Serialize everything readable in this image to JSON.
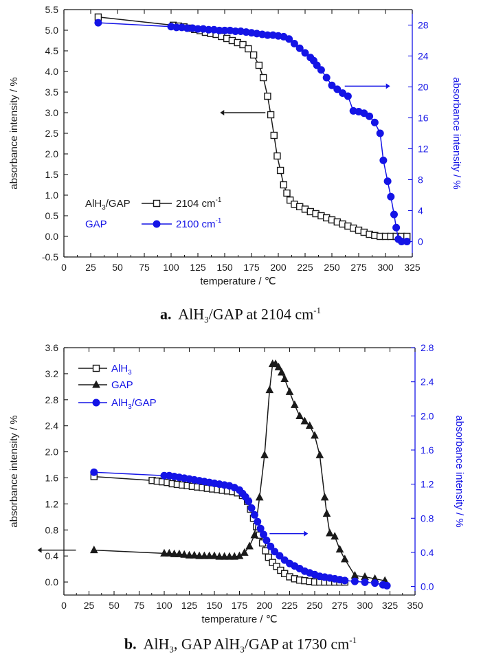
{
  "captions": {
    "a": {
      "letter": "a.",
      "part1": "AlH",
      "sub": "3",
      "part2": "/GAP at 2104 cm",
      "sup": "-1"
    },
    "b": {
      "letter": "b.",
      "part1": "AlH",
      "sub1": "3",
      "part2": ", GAP AlH",
      "sub2": "3",
      "part3": "/GAP at 1730 cm",
      "sup": "-1"
    }
  },
  "colors": {
    "black": "#1a1a1a",
    "blue": "#1414e6"
  },
  "chart_data": [
    {
      "id": "a",
      "type": "line",
      "xlabel": "temperature / ℃",
      "ylabel_left": "absorbance intensity / %",
      "ylabel_right": "absorbance intensity / %",
      "xlim": [
        0,
        325
      ],
      "xticks": [
        0,
        25,
        50,
        75,
        100,
        125,
        150,
        175,
        200,
        225,
        250,
        275,
        300,
        325
      ],
      "ylim_left": [
        -0.5,
        5.5
      ],
      "yticks_left": [
        -0.5,
        0.0,
        0.5,
        1.0,
        1.5,
        2.0,
        2.5,
        3.0,
        3.5,
        4.0,
        4.5,
        5.0,
        5.5
      ],
      "ylim_right": [
        -2,
        30
      ],
      "yticks_right": [
        0,
        4,
        8,
        12,
        16,
        20,
        24,
        28
      ],
      "legend": [
        {
          "label": "AlH",
          "sub": "3",
          "label2": "/GAP",
          "line": "2104 cm",
          "sup": "-1",
          "marker": "square",
          "color": "#1a1a1a"
        },
        {
          "label": "GAP",
          "line": "2100 cm",
          "sup": "-1",
          "marker": "circle",
          "color": "#1414e6"
        }
      ],
      "series": [
        {
          "axis": "left",
          "marker": "square",
          "color": "#1a1a1a",
          "x": [
            32,
            102,
            107,
            112,
            117,
            122,
            127,
            132,
            137,
            142,
            147,
            152,
            157,
            162,
            167,
            172,
            177,
            182,
            186,
            190,
            193,
            196,
            199,
            202,
            205,
            208,
            211,
            215,
            220,
            225,
            230,
            235,
            240,
            245,
            250,
            255,
            260,
            265,
            270,
            275,
            280,
            285,
            290,
            295,
            300,
            305,
            310,
            315,
            320
          ],
          "y": [
            5.32,
            5.12,
            5.1,
            5.08,
            5.05,
            5.02,
            4.99,
            4.95,
            4.92,
            4.9,
            4.85,
            4.8,
            4.75,
            4.7,
            4.65,
            4.55,
            4.4,
            4.15,
            3.85,
            3.4,
            2.95,
            2.45,
            1.95,
            1.6,
            1.25,
            1.05,
            0.88,
            0.78,
            0.72,
            0.66,
            0.6,
            0.55,
            0.5,
            0.45,
            0.4,
            0.35,
            0.3,
            0.25,
            0.2,
            0.15,
            0.1,
            0.05,
            0.02,
            0.0,
            0.0,
            0.0,
            0.0,
            0.0,
            0.0
          ]
        },
        {
          "axis": "right",
          "marker": "circle",
          "color": "#1414e6",
          "x": [
            32,
            100,
            105,
            110,
            115,
            120,
            125,
            130,
            135,
            140,
            145,
            150,
            155,
            160,
            165,
            170,
            175,
            180,
            185,
            190,
            195,
            200,
            205,
            210,
            215,
            220,
            225,
            230,
            233,
            236,
            240,
            245,
            250,
            255,
            260,
            265,
            270,
            275,
            280,
            285,
            290,
            295,
            298,
            302,
            305,
            308,
            310,
            312,
            315,
            320
          ],
          "y": [
            28.3,
            27.8,
            27.7,
            27.7,
            27.6,
            27.6,
            27.5,
            27.5,
            27.4,
            27.4,
            27.3,
            27.3,
            27.3,
            27.2,
            27.2,
            27.1,
            27.0,
            26.9,
            26.8,
            26.7,
            26.7,
            26.6,
            26.5,
            26.2,
            25.6,
            25.0,
            24.4,
            23.8,
            23.4,
            22.8,
            22.2,
            21.2,
            20.2,
            19.7,
            19.2,
            18.8,
            16.9,
            16.8,
            16.6,
            16.2,
            15.4,
            14.0,
            10.5,
            7.8,
            5.8,
            3.5,
            1.8,
            0.3,
            0.0,
            0.0
          ]
        }
      ],
      "annotations": [
        {
          "text": "←",
          "points_to": "left axis",
          "x": 188,
          "y": 3.0
        },
        {
          "text": "→",
          "points_to": "right axis",
          "x": 262,
          "y": 20.1
        }
      ]
    },
    {
      "id": "b",
      "type": "line",
      "xlabel": "temperature / ℃",
      "ylabel_left": "absorbance intensity / %",
      "ylabel_right": "absorbance intensity / %",
      "xlim": [
        0,
        350
      ],
      "xticks": [
        0,
        25,
        50,
        75,
        100,
        125,
        150,
        175,
        200,
        225,
        250,
        275,
        300,
        325,
        350
      ],
      "ylim_left": [
        -0.2,
        3.6
      ],
      "yticks_left": [
        0.0,
        0.4,
        0.8,
        1.2,
        1.6,
        2.0,
        2.4,
        2.8,
        3.2,
        3.6
      ],
      "ylim_right": [
        -0.1,
        2.8
      ],
      "yticks_right": [
        0.0,
        0.4,
        0.8,
        1.2,
        1.6,
        2.0,
        2.4,
        2.8
      ],
      "legend": [
        {
          "label": "AlH",
          "sub": "3",
          "marker": "square",
          "color": "#1a1a1a"
        },
        {
          "label": "GAP",
          "marker": "triangle",
          "color": "#1a1a1a"
        },
        {
          "label": "AlH",
          "sub": "3",
          "label2": "/GAP",
          "marker": "circle",
          "color": "#1414e6"
        }
      ],
      "series": [
        {
          "axis": "left",
          "marker": "square",
          "color": "#1a1a1a",
          "name": "AlH3",
          "x": [
            30,
            88,
            93,
            98,
            103,
            108,
            113,
            118,
            123,
            128,
            133,
            138,
            143,
            148,
            153,
            158,
            163,
            168,
            173,
            178,
            183,
            186,
            189,
            192,
            195,
            198,
            201,
            204,
            208,
            212,
            216,
            220,
            225,
            230,
            235,
            240,
            245,
            250,
            255,
            260,
            265,
            270,
            275,
            280
          ],
          "y": [
            1.62,
            1.56,
            1.55,
            1.54,
            1.53,
            1.51,
            1.5,
            1.49,
            1.48,
            1.47,
            1.46,
            1.45,
            1.44,
            1.43,
            1.42,
            1.41,
            1.4,
            1.39,
            1.37,
            1.33,
            1.24,
            1.12,
            0.98,
            0.85,
            0.72,
            0.6,
            0.48,
            0.38,
            0.3,
            0.24,
            0.18,
            0.13,
            0.08,
            0.05,
            0.03,
            0.02,
            0.01,
            0.0,
            0.0,
            0.0,
            0.0,
            0.0,
            0.0,
            0.0
          ]
        },
        {
          "axis": "left",
          "marker": "triangle",
          "color": "#1a1a1a",
          "name": "GAP",
          "x": [
            30,
            100,
            105,
            110,
            115,
            120,
            125,
            130,
            135,
            140,
            145,
            150,
            155,
            160,
            165,
            170,
            175,
            180,
            185,
            190,
            195,
            200,
            205,
            208,
            211,
            214,
            217,
            220,
            225,
            230,
            235,
            240,
            245,
            250,
            255,
            260,
            262,
            265,
            270,
            275,
            280,
            290,
            300,
            310,
            320
          ],
          "y": [
            0.49,
            0.44,
            0.44,
            0.43,
            0.43,
            0.42,
            0.41,
            0.41,
            0.4,
            0.4,
            0.4,
            0.4,
            0.39,
            0.39,
            0.39,
            0.39,
            0.4,
            0.45,
            0.55,
            0.72,
            1.3,
            1.95,
            2.95,
            3.35,
            3.35,
            3.3,
            3.22,
            3.12,
            2.92,
            2.72,
            2.55,
            2.47,
            2.4,
            2.25,
            1.95,
            1.3,
            1.05,
            0.75,
            0.7,
            0.5,
            0.35,
            0.1,
            0.08,
            0.05,
            0.02
          ]
        },
        {
          "axis": "right",
          "marker": "circle",
          "color": "#1414e6",
          "name": "AlH3/GAP",
          "x": [
            30,
            100,
            105,
            110,
            115,
            120,
            125,
            130,
            135,
            140,
            145,
            150,
            155,
            160,
            165,
            170,
            175,
            178,
            181,
            184,
            187,
            190,
            193,
            196,
            199,
            202,
            206,
            210,
            215,
            220,
            225,
            230,
            235,
            240,
            245,
            250,
            255,
            260,
            265,
            270,
            275,
            280,
            290,
            300,
            310,
            318,
            322
          ],
          "y": [
            1.34,
            1.3,
            1.3,
            1.29,
            1.28,
            1.27,
            1.26,
            1.25,
            1.24,
            1.23,
            1.22,
            1.21,
            1.2,
            1.19,
            1.18,
            1.16,
            1.13,
            1.09,
            1.05,
            1.0,
            0.92,
            0.84,
            0.76,
            0.68,
            0.61,
            0.54,
            0.47,
            0.41,
            0.36,
            0.31,
            0.27,
            0.24,
            0.21,
            0.18,
            0.16,
            0.14,
            0.12,
            0.11,
            0.1,
            0.09,
            0.08,
            0.07,
            0.06,
            0.05,
            0.04,
            0.02,
            0.01
          ]
        }
      ],
      "annotations": [
        {
          "text": "←",
          "points_to": "left axis",
          "x": 12,
          "y": 0.49
        },
        {
          "text": "→",
          "points_to": "right axis",
          "x": 205,
          "y": 0.62
        }
      ]
    }
  ]
}
